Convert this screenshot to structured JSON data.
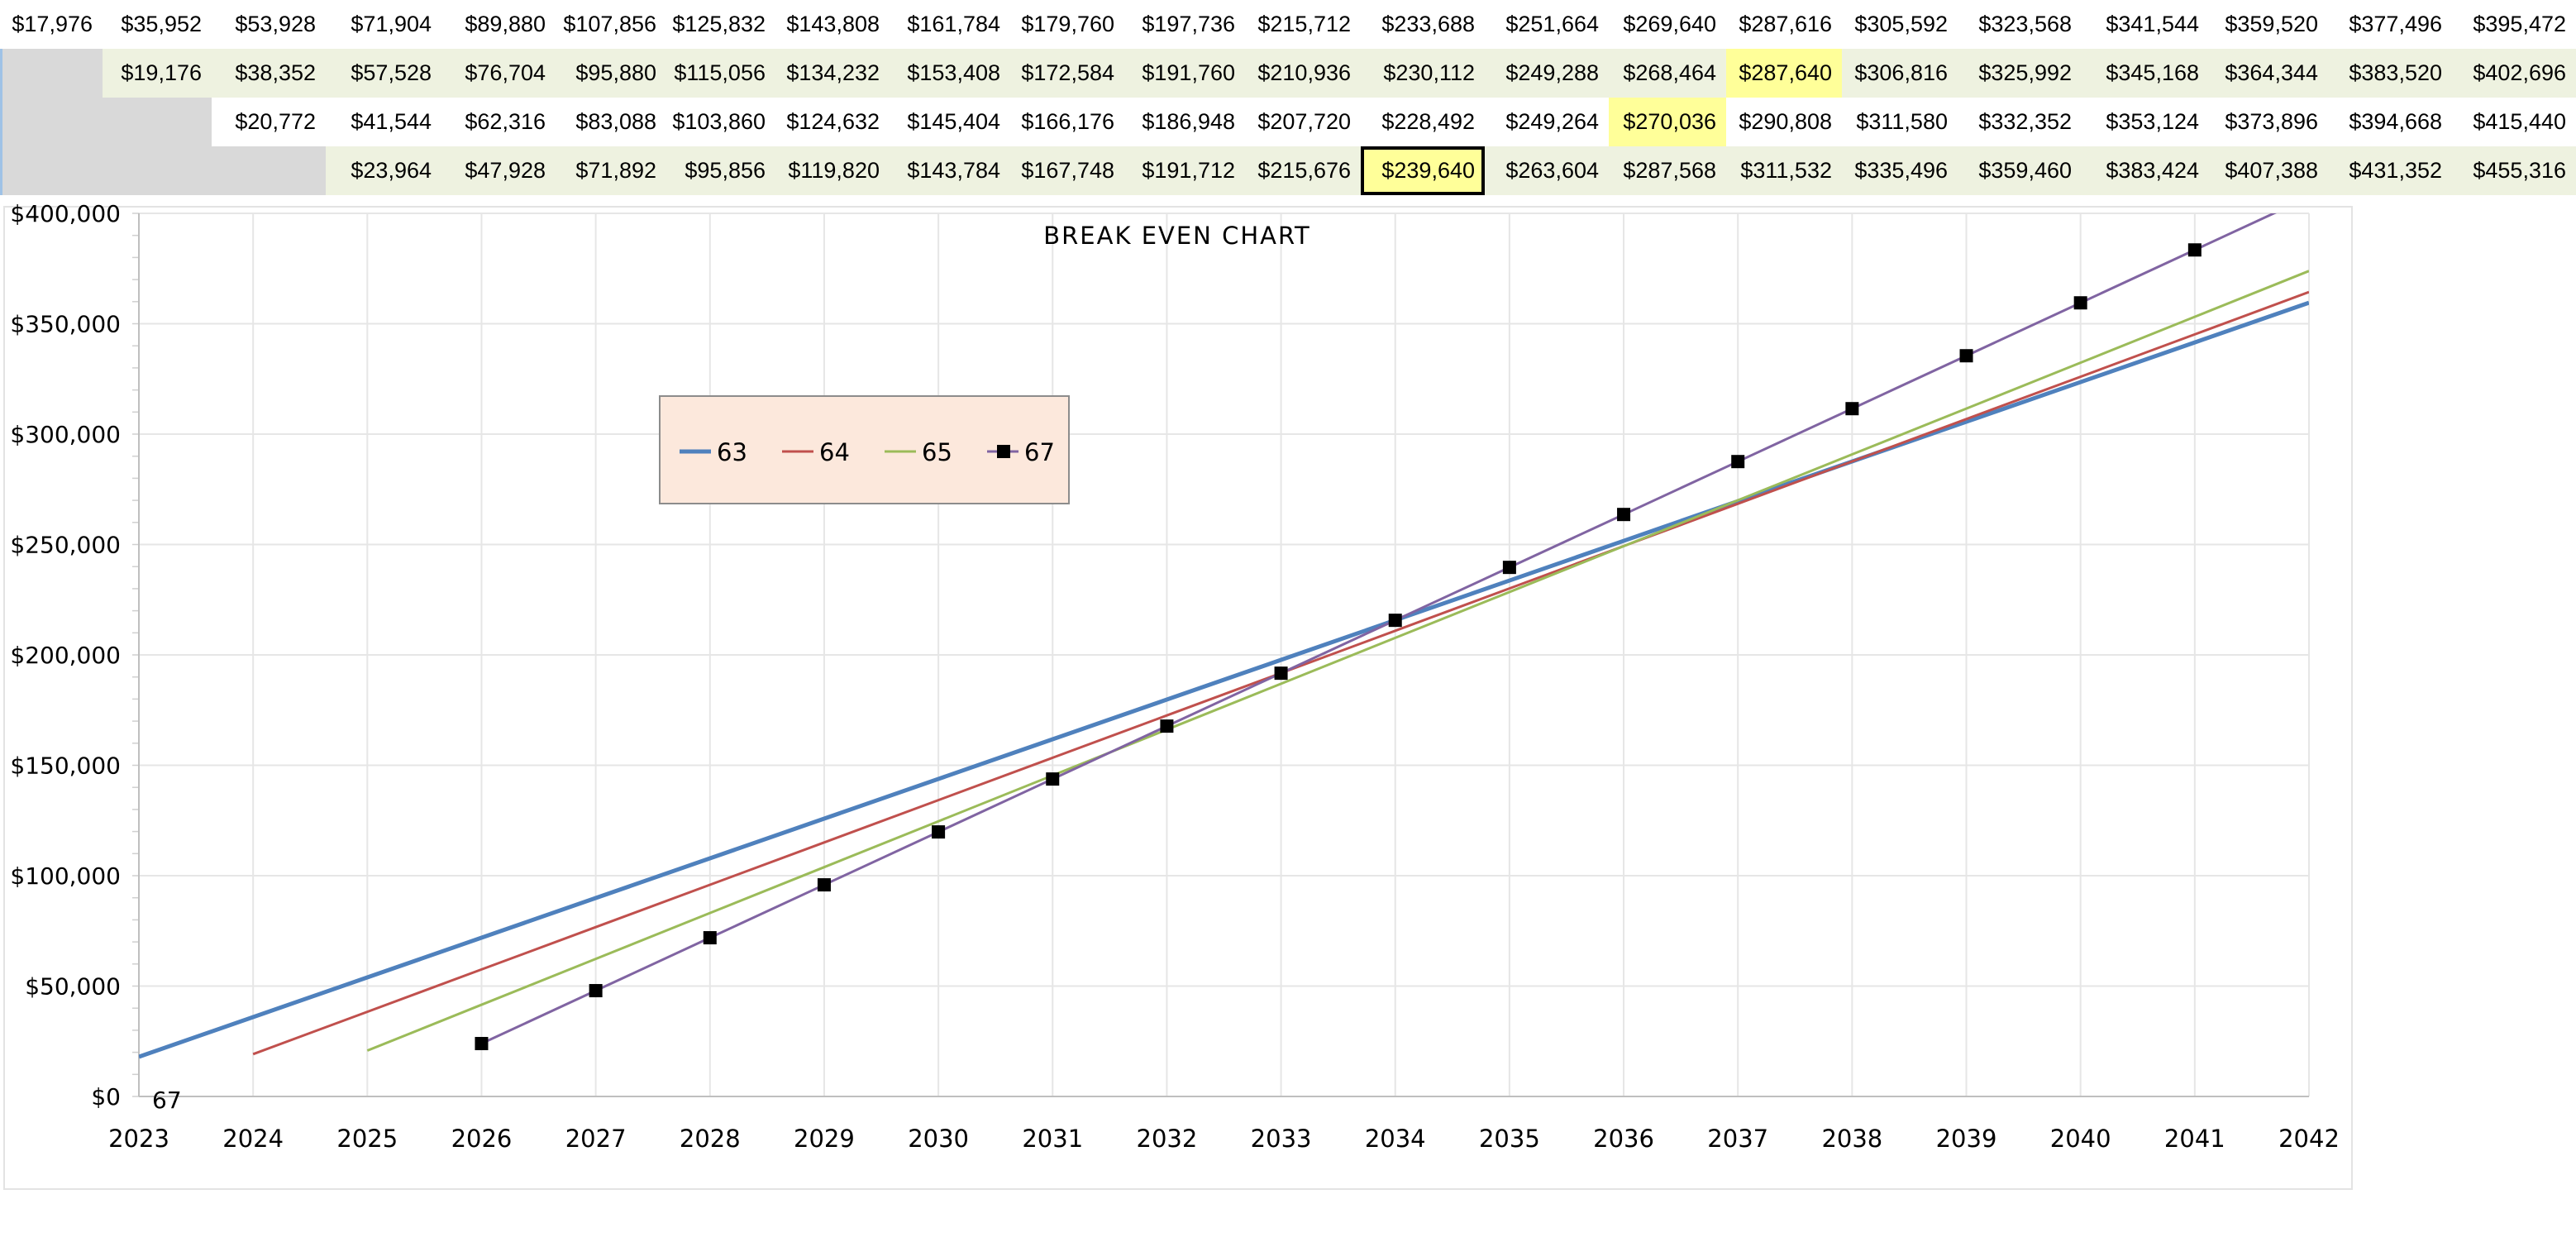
{
  "sheet": {
    "rows": [
      [
        "$17,976",
        "$35,952",
        "$53,928",
        "$71,904",
        "$89,880",
        "$107,856",
        "$125,832",
        "$143,808",
        "$161,784",
        "$179,760",
        "$197,736",
        "$215,712",
        "$233,688",
        "$251,664",
        "$269,640",
        "$287,616",
        "$305,592",
        "$323,568",
        "$341,544",
        "$359,520",
        "$377,496",
        "$395,472"
      ],
      [
        "",
        "$19,176",
        "$38,352",
        "$57,528",
        "$76,704",
        "$95,880",
        "$115,056",
        "$134,232",
        "$153,408",
        "$172,584",
        "$191,760",
        "$210,936",
        "$230,112",
        "$249,288",
        "$268,464",
        "$287,640",
        "$306,816",
        "$325,992",
        "$345,168",
        "$364,344",
        "$383,520",
        "$402,696"
      ],
      [
        "",
        "",
        "$20,772",
        "$41,544",
        "$62,316",
        "$83,088",
        "$103,860",
        "$124,632",
        "$145,404",
        "$166,176",
        "$186,948",
        "$207,720",
        "$228,492",
        "$249,264",
        "$270,036",
        "$290,808",
        "$311,580",
        "$332,352",
        "$353,124",
        "$373,896",
        "$394,668",
        "$415,440"
      ],
      [
        "",
        "",
        "",
        "$23,964",
        "$47,928",
        "$71,892",
        "$95,856",
        "$119,820",
        "$143,784",
        "$167,748",
        "$191,712",
        "$215,676",
        "$239,640",
        "$263,604",
        "$287,568",
        "$311,532",
        "$335,496",
        "$359,460",
        "$383,424",
        "$407,388",
        "$431,352",
        "$455,316"
      ]
    ],
    "highlighted_cells": [
      [
        1,
        15
      ],
      [
        2,
        14
      ]
    ],
    "selected_cell": [
      3,
      12
    ],
    "highlight_color": "#ffff99",
    "band_color": "#eef2e0",
    "blank_color": "#d9d9d9"
  },
  "chart_data": {
    "type": "line",
    "title": "BREAK EVEN CHART",
    "xlabel": "",
    "ylabel": "",
    "x": [
      2023,
      2024,
      2025,
      2026,
      2027,
      2028,
      2029,
      2030,
      2031,
      2032,
      2033,
      2034,
      2035,
      2036,
      2037,
      2038,
      2039,
      2040,
      2041,
      2042
    ],
    "x_tick_labels": [
      "2023",
      "2024",
      "2025",
      "2026",
      "2027",
      "2028",
      "2029",
      "2030",
      "2031",
      "2032",
      "2033",
      "2034",
      "2035",
      "2036",
      "2037",
      "2038",
      "2039",
      "2040",
      "2041",
      "2042"
    ],
    "ylim": [
      0,
      400000
    ],
    "y_ticks": [
      0,
      50000,
      100000,
      150000,
      200000,
      250000,
      300000,
      350000,
      400000
    ],
    "y_tick_labels": [
      "$0",
      "$50,000",
      "$100,000",
      "$150,000",
      "$200,000",
      "$250,000",
      "$300,000",
      "$350,000",
      "$400,000"
    ],
    "annotation": "67",
    "grid": true,
    "legend_position": "top-left inside plot",
    "legend_background": "#fce8dc",
    "series": [
      {
        "name": "63",
        "color": "#4f81bd",
        "marker": "none",
        "values": [
          17976,
          35952,
          53928,
          71904,
          89880,
          107856,
          125832,
          143808,
          161784,
          179760,
          197736,
          215712,
          233688,
          251664,
          269640,
          287616,
          305592,
          323568,
          341544,
          359520
        ]
      },
      {
        "name": "64",
        "color": "#c0504d",
        "marker": "none",
        "values": [
          null,
          19176,
          38352,
          57528,
          76704,
          95880,
          115056,
          134232,
          153408,
          172584,
          191760,
          210936,
          230112,
          249288,
          268464,
          287640,
          306816,
          325992,
          345168,
          364344
        ]
      },
      {
        "name": "65",
        "color": "#9bbb59",
        "marker": "none",
        "values": [
          null,
          null,
          20772,
          41544,
          62316,
          83088,
          103860,
          124632,
          145404,
          166176,
          186948,
          207720,
          228492,
          249264,
          270036,
          290808,
          311580,
          332352,
          353124,
          373896
        ]
      },
      {
        "name": "67",
        "color": "#8064a2",
        "marker": "square",
        "marker_color": "#000000",
        "values": [
          null,
          null,
          null,
          23964,
          47928,
          71892,
          95856,
          119820,
          143784,
          167748,
          191712,
          215676,
          239640,
          263604,
          287568,
          311532,
          335496,
          359460,
          383424,
          407388
        ]
      }
    ]
  }
}
